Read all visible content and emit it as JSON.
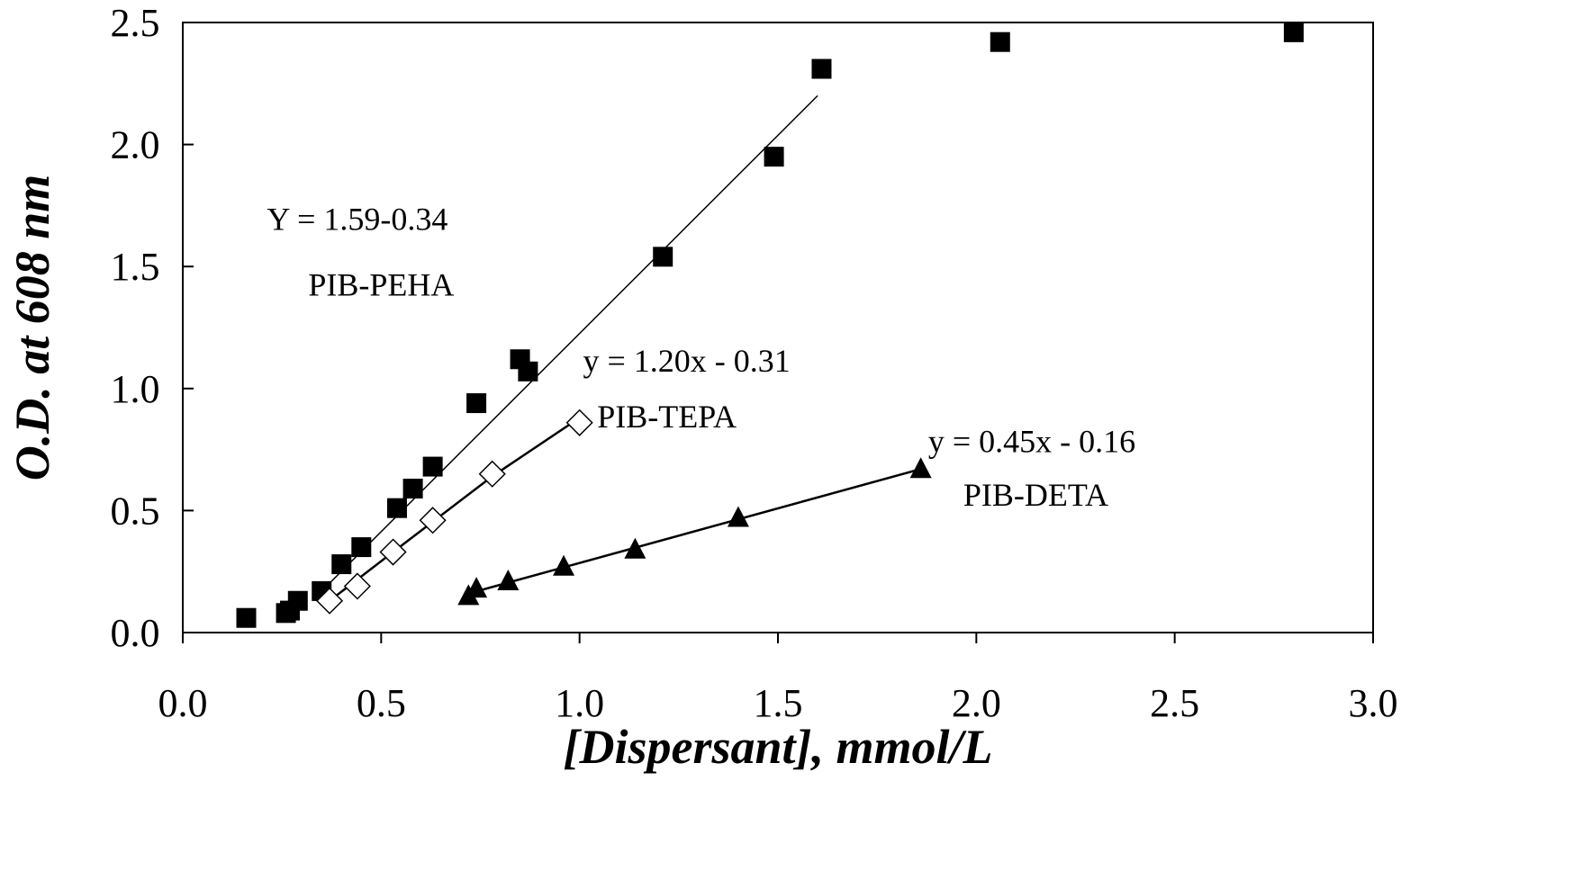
{
  "chart_data": {
    "type": "scatter",
    "title": "",
    "xlabel": "[Dispersant], mmol/L",
    "ylabel": "O.D. at 608 nm",
    "xlim": [
      0,
      3.0
    ],
    "ylim": [
      0,
      2.5
    ],
    "xticks": [
      "0.0",
      "0.5",
      "1.0",
      "1.5",
      "2.0",
      "2.5",
      "3.0"
    ],
    "yticks": [
      "0.0",
      "0.5",
      "1.0",
      "1.5",
      "2.0",
      "2.5"
    ],
    "grid": false,
    "legend": "none",
    "series": [
      {
        "name": "PIB-PEHA",
        "marker": "filled-square",
        "color": "#000000",
        "x": [
          0.16,
          0.26,
          0.27,
          0.29,
          0.35,
          0.4,
          0.45,
          0.54,
          0.58,
          0.63,
          0.74,
          0.85,
          0.87,
          1.21,
          1.49,
          1.61,
          2.06,
          2.8
        ],
        "y": [
          0.06,
          0.08,
          0.09,
          0.13,
          0.17,
          0.28,
          0.35,
          0.51,
          0.59,
          0.68,
          0.94,
          1.12,
          1.07,
          1.54,
          1.95,
          2.31,
          2.42,
          2.46
        ],
        "trendline": {
          "x": [
            0.35,
            1.6
          ],
          "y": [
            0.17,
            2.2
          ]
        }
      },
      {
        "name": "PIB-TEPA",
        "marker": "open-diamond",
        "color": "#000000",
        "x": [
          0.37,
          0.44,
          0.53,
          0.63,
          0.78,
          1.0
        ],
        "y": [
          0.13,
          0.19,
          0.33,
          0.46,
          0.65,
          0.86
        ],
        "trendline": {
          "x": [
            0.37,
            0.53,
            0.78,
            1.0
          ],
          "y": [
            0.13,
            0.33,
            0.64,
            0.88
          ]
        }
      },
      {
        "name": "PIB-DETA",
        "marker": "filled-triangle",
        "color": "#000000",
        "x": [
          0.72,
          0.74,
          0.82,
          0.96,
          1.14,
          1.4,
          1.86
        ],
        "y": [
          0.15,
          0.18,
          0.21,
          0.27,
          0.34,
          0.47,
          0.67
        ],
        "trendline": {
          "x": [
            0.72,
            1.86
          ],
          "y": [
            0.16,
            0.67
          ]
        }
      }
    ],
    "annotations": [
      {
        "text": "Y = 1.59-0.34",
        "x": 0.44,
        "y": 1.65
      },
      {
        "text": "PIB-PEHA",
        "x": 0.5,
        "y": 1.38
      },
      {
        "text": "y = 1.20x - 0.31",
        "x": 1.27,
        "y": 1.07
      },
      {
        "text": "PIB-TEPA",
        "x": 1.22,
        "y": 0.84
      },
      {
        "text": "y = 0.45x - 0.16",
        "x": 2.14,
        "y": 0.74
      },
      {
        "text": "PIB-DETA",
        "x": 2.15,
        "y": 0.52
      }
    ]
  }
}
